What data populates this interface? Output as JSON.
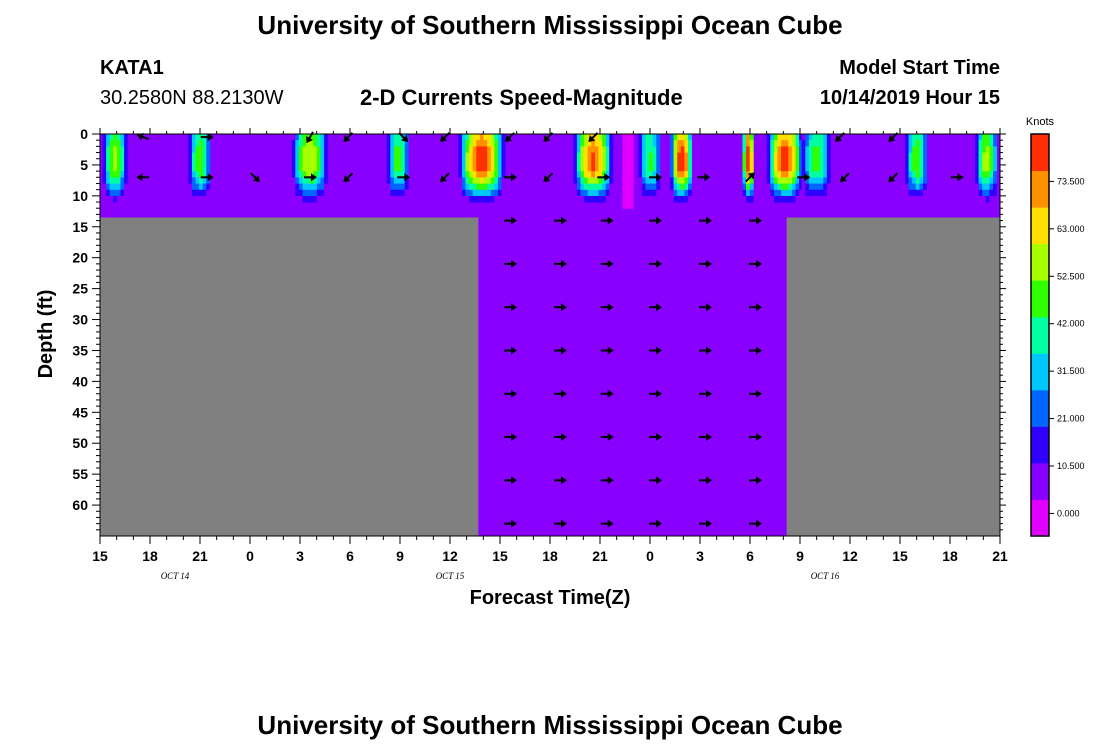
{
  "header": {
    "title": "University of Southern Mississippi Ocean Cube",
    "station_id": "KATA1",
    "location": "30.2580N 88.2130W",
    "product": "2-D Currents Speed-Magnitude",
    "model_label": "Model Start Time",
    "model_time": "10/14/2019 Hour 15",
    "footer_title": "University of Southern Mississippi Ocean Cube"
  },
  "colors": {
    "land": "#808080",
    "background_water": "#8a00ff",
    "palette": [
      "#e000ff",
      "#8a00ff",
      "#3000ff",
      "#0066ff",
      "#00c8ff",
      "#00ffa0",
      "#30ff00",
      "#a8ff00",
      "#ffe000",
      "#ff9000",
      "#ff3000"
    ]
  },
  "chart_data": {
    "type": "heatmap",
    "title": "2-D Currents Speed-Magnitude",
    "xlabel": "Forecast Time(Z)",
    "ylabel": "Depth (ft)",
    "xlim": [
      0,
      54
    ],
    "ylim": [
      0,
      65
    ],
    "y_inverted": true,
    "x_tick_labels": [
      "15",
      "18",
      "21",
      "0",
      "3",
      "6",
      "9",
      "12",
      "15",
      "18",
      "21",
      "0",
      "3",
      "6",
      "9",
      "12",
      "15",
      "18",
      "21"
    ],
    "y_ticks": [
      0,
      5,
      10,
      15,
      20,
      25,
      30,
      35,
      40,
      45,
      50,
      55,
      60
    ],
    "date_labels": [
      {
        "x": 4.5,
        "text": "OCT 14"
      },
      {
        "x": 21,
        "text": "OCT 15"
      },
      {
        "x": 43.5,
        "text": "OCT 16"
      }
    ],
    "colorbar": {
      "title": "Knots",
      "tick_labels": [
        "0.000",
        "10.500",
        "21.000",
        "31.500",
        "42.000",
        "52.500",
        "63.000",
        "73.500"
      ],
      "tick_values": [
        0,
        10.5,
        21,
        31.5,
        42,
        52.5,
        63,
        73.5
      ],
      "min": -5,
      "max": 84
    },
    "surface_layer_depth": 13.5,
    "deep_water_x_range": [
      22.7,
      41.2
    ],
    "speed_columns": [
      {
        "x": 0.9,
        "half_width": 0.75,
        "peak": 55
      },
      {
        "x": 6.0,
        "half_width": 0.7,
        "peak": 50
      },
      {
        "x": 12.6,
        "half_width": 1.1,
        "peak": 60
      },
      {
        "x": 17.9,
        "half_width": 0.7,
        "peak": 48
      },
      {
        "x": 22.9,
        "half_width": 1.4,
        "peak": 82
      },
      {
        "x": 29.6,
        "half_width": 1.2,
        "peak": 76
      },
      {
        "x": 31.6,
        "half_width": 0.25,
        "peak": -4
      },
      {
        "x": 33.0,
        "half_width": 0.7,
        "peak": 45
      },
      {
        "x": 34.9,
        "half_width": 0.7,
        "peak": 80
      },
      {
        "x": 38.9,
        "half_width": 0.35,
        "peak": 84
      },
      {
        "x": 41.1,
        "half_width": 1.1,
        "peak": 80
      },
      {
        "x": 43.0,
        "half_width": 0.9,
        "peak": 48
      },
      {
        "x": 49.0,
        "half_width": 0.7,
        "peak": 50
      },
      {
        "x": 53.2,
        "half_width": 0.7,
        "peak": 55
      }
    ],
    "vectors": [
      {
        "x": 2.6,
        "depth": 0.5,
        "angle": 160
      },
      {
        "x": 6.4,
        "depth": 0.5,
        "angle": 0
      },
      {
        "x": 12.6,
        "depth": 0.5,
        "angle": 240
      },
      {
        "x": 14.9,
        "depth": 0.5,
        "angle": 225
      },
      {
        "x": 18.2,
        "depth": 0.5,
        "angle": 315
      },
      {
        "x": 20.7,
        "depth": 0.5,
        "angle": 225
      },
      {
        "x": 24.6,
        "depth": 0.5,
        "angle": 225
      },
      {
        "x": 26.9,
        "depth": 0.5,
        "angle": 225
      },
      {
        "x": 29.6,
        "depth": 0.5,
        "angle": 225
      },
      {
        "x": 44.4,
        "depth": 0.5,
        "angle": 225
      },
      {
        "x": 47.6,
        "depth": 0.5,
        "angle": 225
      },
      {
        "x": 2.6,
        "depth": 7,
        "angle": 180
      },
      {
        "x": 6.4,
        "depth": 7,
        "angle": 0
      },
      {
        "x": 9.3,
        "depth": 7,
        "angle": 315
      },
      {
        "x": 12.6,
        "depth": 7,
        "angle": 0
      },
      {
        "x": 14.9,
        "depth": 7,
        "angle": 225
      },
      {
        "x": 18.2,
        "depth": 7,
        "angle": 0
      },
      {
        "x": 20.7,
        "depth": 7,
        "angle": 225
      },
      {
        "x": 24.6,
        "depth": 7,
        "angle": 0
      },
      {
        "x": 26.9,
        "depth": 7,
        "angle": 225
      },
      {
        "x": 30.2,
        "depth": 7,
        "angle": 0
      },
      {
        "x": 33.3,
        "depth": 7,
        "angle": 0
      },
      {
        "x": 36.2,
        "depth": 7,
        "angle": 0
      },
      {
        "x": 39.0,
        "depth": 7,
        "angle": 45
      },
      {
        "x": 42.2,
        "depth": 7,
        "angle": 0
      },
      {
        "x": 44.7,
        "depth": 7,
        "angle": 225
      },
      {
        "x": 47.6,
        "depth": 7,
        "angle": 225
      },
      {
        "x": 51.4,
        "depth": 7,
        "angle": 0
      }
    ],
    "deep_vector_columns": [
      24.6,
      27.6,
      30.4,
      33.3,
      36.3,
      39.3
    ],
    "deep_vector_depths": [
      14,
      21,
      28,
      35,
      42,
      49,
      56,
      63
    ],
    "deep_vector_angle": 0
  }
}
